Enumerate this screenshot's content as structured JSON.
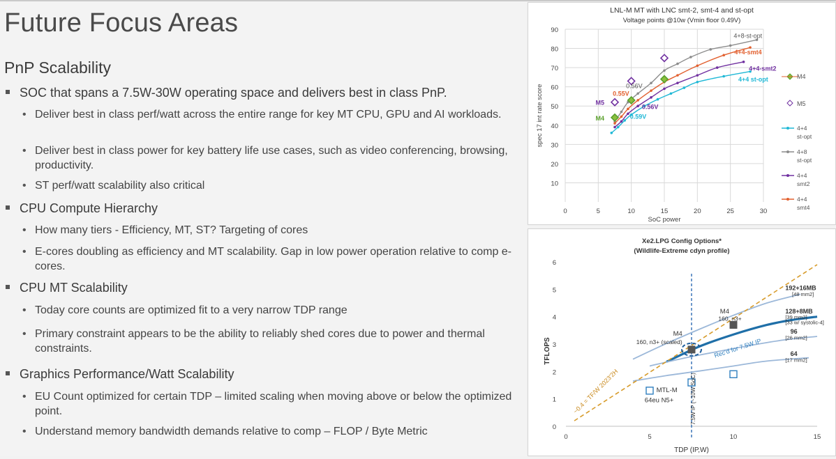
{
  "slide": {
    "title": "Future Focus Areas",
    "section": "PnP Scalability",
    "bullets": [
      {
        "text": "SOC that spans a 7.5W-30W operating space and delivers best in class PnP.",
        "subs": [
          "Deliver best in class perf/watt across the entire range for key MT CPU, GPU and AI workloads.",
          "Deliver best in class power for key battery life use cases, such as video conferencing, browsing, productivity.",
          "ST perf/watt scalability also critical"
        ]
      },
      {
        "text": "CPU Compute Hierarchy",
        "subs": [
          "How many tiers -  Efficiency, MT, ST? Targeting of cores",
          "E-cores doubling as efficiency and MT scalability. Gap in low power operation relative to comp e-cores."
        ]
      },
      {
        "text": "CPU MT Scalability",
        "subs": [
          "Today core counts are optimized fit to a very narrow TDP range",
          "Primary constraint appears to be the ability to reliably shed cores due to  power and thermal constraints."
        ]
      },
      {
        "text": "Graphics Performance/Watt Scalability",
        "subs": [
          "EU Count optimized for certain TDP – limited scaling when moving above or below the optimized point.",
          "Understand memory bandwidth demands relative to comp – FLOP / Byte Metric"
        ]
      }
    ]
  },
  "chart_data": [
    {
      "type": "line",
      "title": "LNL-M MT with LNC smt-2, smt-4 and st-opt",
      "subtitle": "Voltage points @10w (Vmin floor 0.49V)",
      "xlabel": "SoC power",
      "ylabel": "spec 17 int rate score",
      "xlim": [
        0,
        30
      ],
      "ylim": [
        0,
        90
      ],
      "xticks": [
        0,
        5,
        10,
        15,
        20,
        25,
        30
      ],
      "yticks": [
        10,
        20,
        30,
        40,
        50,
        60,
        70,
        80,
        90
      ],
      "grid": true,
      "legend_position": "right",
      "series": [
        {
          "name": "4+4 st-opt",
          "legend_label": [
            "4+4",
            "st-opt"
          ],
          "color": "#1fb8d6",
          "x": [
            7,
            8,
            9,
            10,
            12,
            14,
            16,
            18,
            20,
            24,
            28
          ],
          "y": [
            36,
            39,
            42.5,
            45.5,
            50,
            53.5,
            56.5,
            59.5,
            62.5,
            65.5,
            68
          ]
        },
        {
          "name": "4+8 st-opt",
          "legend_label": [
            "4+8",
            "st-opt"
          ],
          "color": "#8c8c8c",
          "x": [
            7.5,
            8.5,
            9.5,
            11,
            13,
            15,
            17,
            19,
            22,
            25,
            29
          ],
          "y": [
            42,
            47,
            52,
            56.5,
            62,
            68.5,
            72,
            75.5,
            79.5,
            81.5,
            84.5
          ]
        },
        {
          "name": "4+4 smt2",
          "legend_label": [
            "4+4",
            "smt2"
          ],
          "color": "#7030a0",
          "x": [
            7.5,
            8.5,
            9.5,
            11,
            13,
            15,
            17,
            20,
            23,
            27
          ],
          "y": [
            39,
            42,
            46,
            50,
            54.5,
            59,
            62,
            66,
            70,
            73
          ]
        },
        {
          "name": "4+4 smt4",
          "legend_label": [
            "4+4",
            "smt4"
          ],
          "color": "#e2602f",
          "x": [
            7.5,
            8.5,
            9.5,
            11,
            13,
            15,
            17,
            20,
            24,
            28
          ],
          "y": [
            41,
            44.5,
            48.5,
            53,
            58,
            62.5,
            66,
            71,
            76.5,
            80.5
          ]
        }
      ],
      "markers": [
        {
          "name": "M4",
          "shape": "diamond",
          "color": "#5aa02c",
          "x": [
            7.5,
            10,
            15
          ],
          "y": [
            44,
            53,
            64
          ]
        },
        {
          "name": "M5",
          "shape": "diamond",
          "color": "#7030a0",
          "x": [
            7.5,
            10,
            15
          ],
          "y": [
            52,
            63,
            75
          ]
        }
      ],
      "annotations": [
        {
          "text": "M5",
          "color": "#7030a0"
        },
        {
          "text": "M4",
          "color": "#5aa02c"
        },
        {
          "text": "0.55V",
          "color": "#e2602f"
        },
        {
          "text": "0.56V",
          "color": "#555555"
        },
        {
          "text": "0.56V",
          "color": "#7030a0"
        },
        {
          "text": "0.59V",
          "color": "#1fb8d6"
        },
        {
          "text": "4+8-st-opt",
          "color": "#555555"
        },
        {
          "text": "4+4-smt4",
          "color": "#e2602f"
        },
        {
          "text": "4+4-smt2",
          "color": "#7030a0"
        },
        {
          "text": "4+4 st-opt",
          "color": "#1fb8d6"
        }
      ]
    },
    {
      "type": "line",
      "title": "Xe2.LPG Config Options*",
      "subtitle": "(Wildlife-Extreme cdyn profile)",
      "xlabel": "TDP (IP,W)",
      "ylabel": "TFLOPS",
      "xlim": [
        0,
        15
      ],
      "ylim": [
        0,
        6
      ],
      "xticks": [
        0,
        5,
        10,
        15
      ],
      "yticks": [
        0,
        1,
        2,
        3,
        4,
        5,
        6
      ],
      "grid": false,
      "series": [
        {
          "name": "192+16MB",
          "color": "#9cb8d9",
          "x": [
            4,
            6,
            8,
            10,
            12,
            14
          ],
          "y": [
            2.45,
            3.02,
            3.55,
            4.05,
            4.5,
            4.82
          ]
        },
        {
          "name": "128+8MB",
          "color": "#1f6fa8",
          "x": [
            6,
            8,
            10,
            12,
            13.5,
            15
          ],
          "y": [
            2.35,
            2.92,
            3.35,
            3.7,
            3.88,
            4.0
          ]
        },
        {
          "name": "96",
          "color": "#9cb8d9",
          "x": [
            5,
            7,
            9,
            11,
            13,
            15
          ],
          "y": [
            2.2,
            2.48,
            2.72,
            2.95,
            3.15,
            3.28
          ]
        },
        {
          "name": "64",
          "color": "#9cb8d9",
          "x": [
            4,
            6,
            8,
            10,
            12,
            14.5
          ],
          "y": [
            1.65,
            1.85,
            2.02,
            2.2,
            2.38,
            2.5
          ]
        },
        {
          "name": "~0.4 = TF/W 2023'2H",
          "color": "#d79b2a",
          "dashed": true,
          "x": [
            0.5,
            15
          ],
          "y": [
            0.2,
            5.9
          ]
        }
      ],
      "points": [
        {
          "label": "M4 160, n3+",
          "x": 10,
          "y": 3.7,
          "shape": "filled-square"
        },
        {
          "label": "M4 160, n3+ (scaled)",
          "x": 7.5,
          "y": 2.8,
          "shape": "filled-square"
        },
        {
          "label": "MTL-M 64eu N5+",
          "x": 5,
          "y": 1.3,
          "shape": "open-square"
        },
        {
          "x": 7.5,
          "y": 1.6,
          "shape": "open-square"
        },
        {
          "x": 10,
          "y": 1.9,
          "shape": "open-square"
        }
      ],
      "vertical_line": {
        "x": 7.5,
        "label": "7.5W IP (~10W SoC)"
      },
      "annotations": [
        {
          "text": "192+16MB"
        },
        {
          "text": "[48 mm2]"
        },
        {
          "text": "128+8MB"
        },
        {
          "text": "[39 mm2]"
        },
        {
          "text": "[33 w/ systolic-4]"
        },
        {
          "text": "96"
        },
        {
          "text": "[26 mm2]"
        },
        {
          "text": "64"
        },
        {
          "text": "[17 mm2]"
        },
        {
          "text": "M4"
        },
        {
          "text": "160, n3+"
        },
        {
          "text": "M4"
        },
        {
          "text": "160, n3+ (scaled)"
        },
        {
          "text": "MTL-M"
        },
        {
          "text": "64eu N5+"
        },
        {
          "text": "Rec'd for 7.5W IP"
        },
        {
          "text": "~0.4 = TF/W 2023'2H"
        },
        {
          "text": "7.5W IP (~10W SoC)"
        }
      ]
    }
  ]
}
